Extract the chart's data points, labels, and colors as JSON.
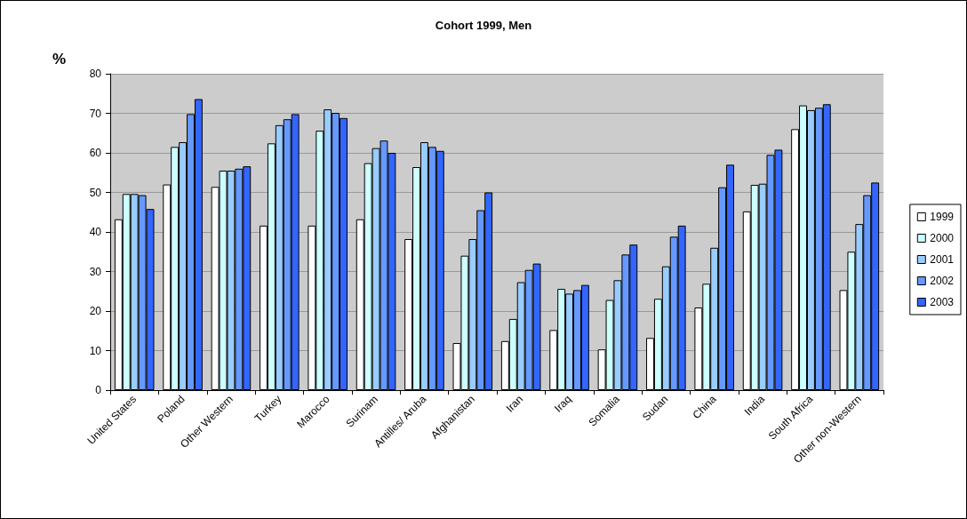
{
  "chart_data": {
    "type": "bar",
    "title": "Cohort 1999, Men",
    "ylabel": "%",
    "categories": [
      "United States",
      "Poland",
      "Other Western",
      "Turkey",
      "Marocco",
      "Surinam",
      "Antilles/ Aruba",
      "Afghanistan",
      "Iran",
      "Iraq",
      "Somalia",
      "Sudan",
      "China",
      "India",
      "South Africa",
      "Other non-Western"
    ],
    "series": [
      {
        "name": "1999",
        "color": "#ffffff",
        "values": [
          43.2,
          52,
          51.4,
          41.6,
          41.6,
          43.2,
          38.2,
          11.9,
          12.4,
          15.2,
          10.3,
          13.2,
          20.9,
          45.2,
          66,
          25.3
        ]
      },
      {
        "name": "2000",
        "color": "#ccffff",
        "values": [
          49.6,
          61.5,
          55.5,
          62.4,
          65.6,
          57.4,
          56.4,
          34,
          18,
          25.6,
          22.8,
          23.1,
          26.9,
          51.9,
          72,
          35
        ]
      },
      {
        "name": "2001",
        "color": "#99ccff",
        "values": [
          49.6,
          62.7,
          55.5,
          67,
          71,
          61.2,
          62.7,
          38.2,
          27.3,
          24.4,
          27.8,
          31.3,
          36,
          52.2,
          70.8,
          42
        ]
      },
      {
        "name": "2002",
        "color": "#6699ff",
        "values": [
          49.3,
          69.8,
          56,
          68.5,
          70.1,
          63.1,
          61.5,
          45.5,
          30.4,
          25.3,
          34.3,
          38.8,
          51.3,
          59.5,
          71.4,
          49.3
        ]
      },
      {
        "name": "2003",
        "color": "#3366ff",
        "values": [
          45.8,
          73.6,
          56.6,
          69.8,
          68.8,
          60,
          60.5,
          50,
          32,
          26.6,
          36.8,
          41.6,
          57,
          60.8,
          72.3,
          52.5
        ]
      }
    ],
    "ylim": [
      0,
      80
    ],
    "yticks": [
      0,
      10,
      20,
      30,
      40,
      50,
      60,
      70,
      80
    ],
    "grid": "y",
    "legend": "right"
  }
}
